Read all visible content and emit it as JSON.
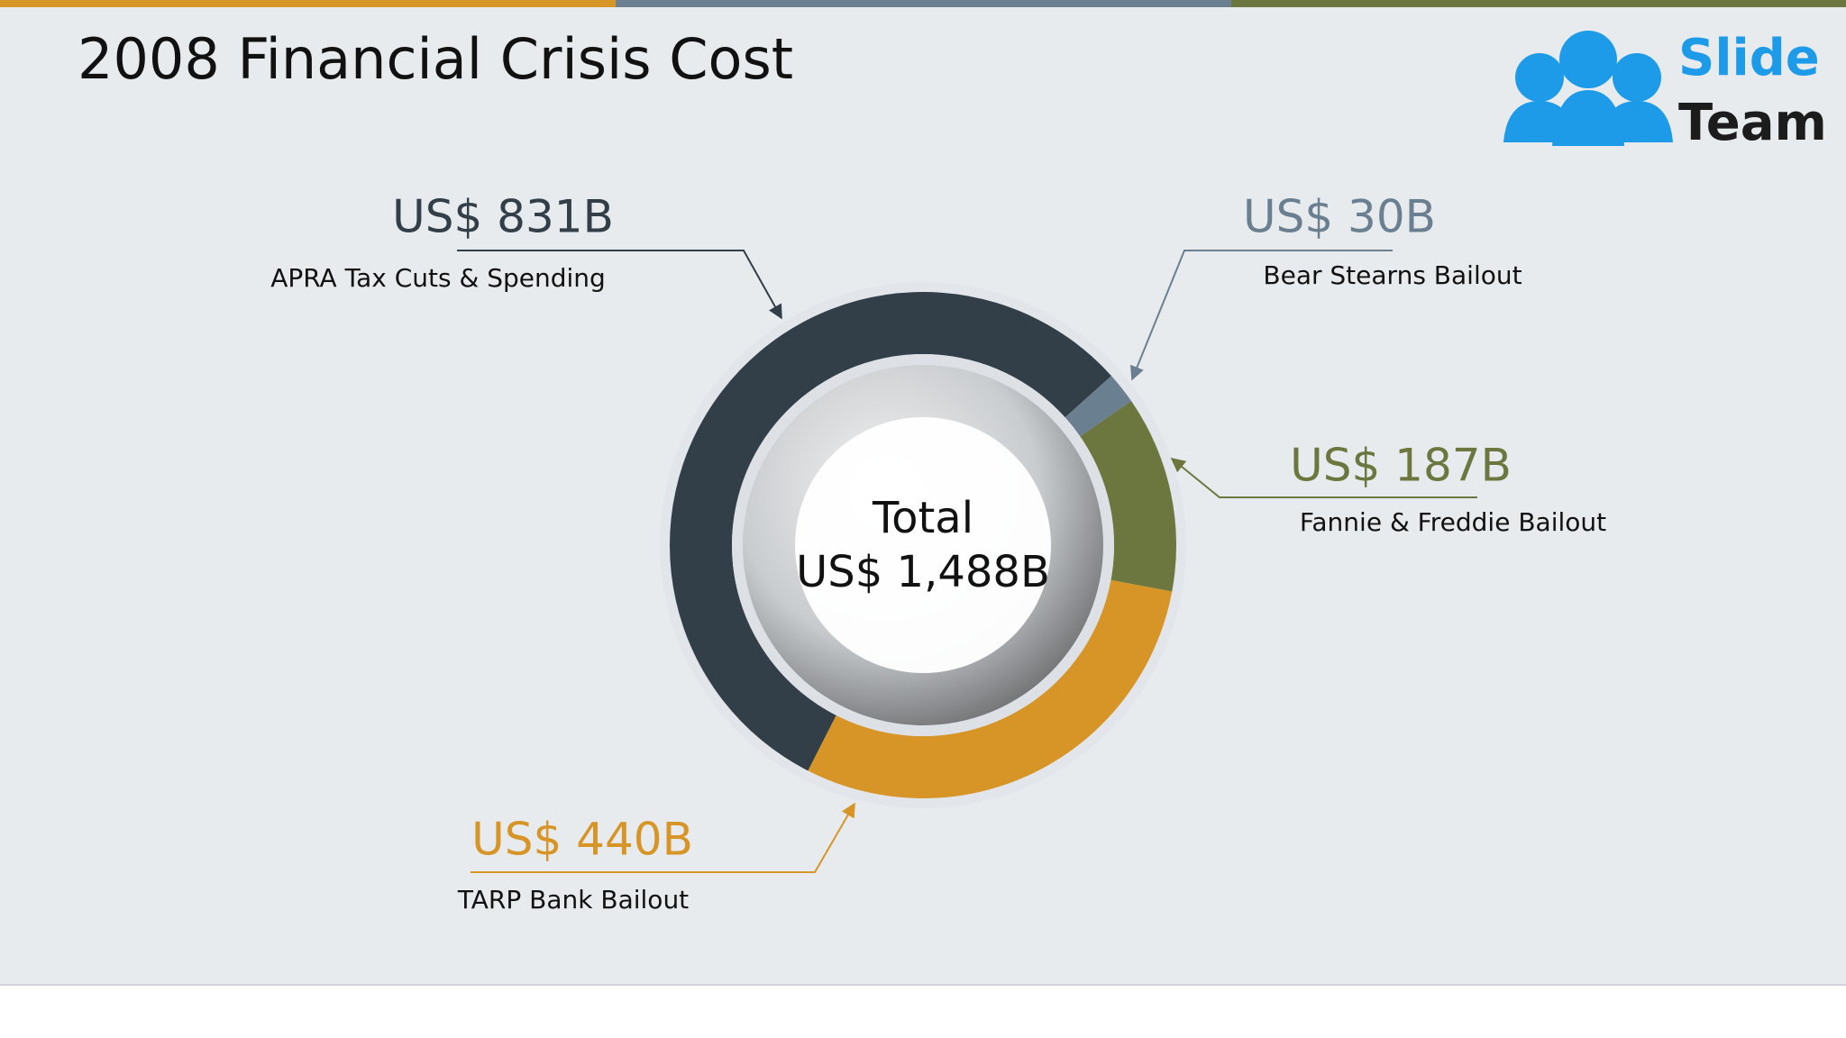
{
  "chart_data": {
    "type": "donut",
    "title": "2008 Financial Crisis Cost",
    "categories": [
      "APRA Tax Cuts & Spending",
      "Bear Stearns Bailout",
      "Fannie & Freddie Bailout",
      "TARP Bank Bailout"
    ],
    "values": [
      831,
      30,
      187,
      440
    ],
    "value_labels": [
      "US$ 831B",
      "US$ 30B",
      "US$ 187B",
      "US$ 440B"
    ],
    "colors": [
      "#323e48",
      "#6a7f90",
      "#6b773f",
      "#d69526"
    ],
    "center_title": "Total",
    "center_value": "US$ 1,488B"
  },
  "logo": {
    "line1": "Slide",
    "line2": "Team"
  }
}
